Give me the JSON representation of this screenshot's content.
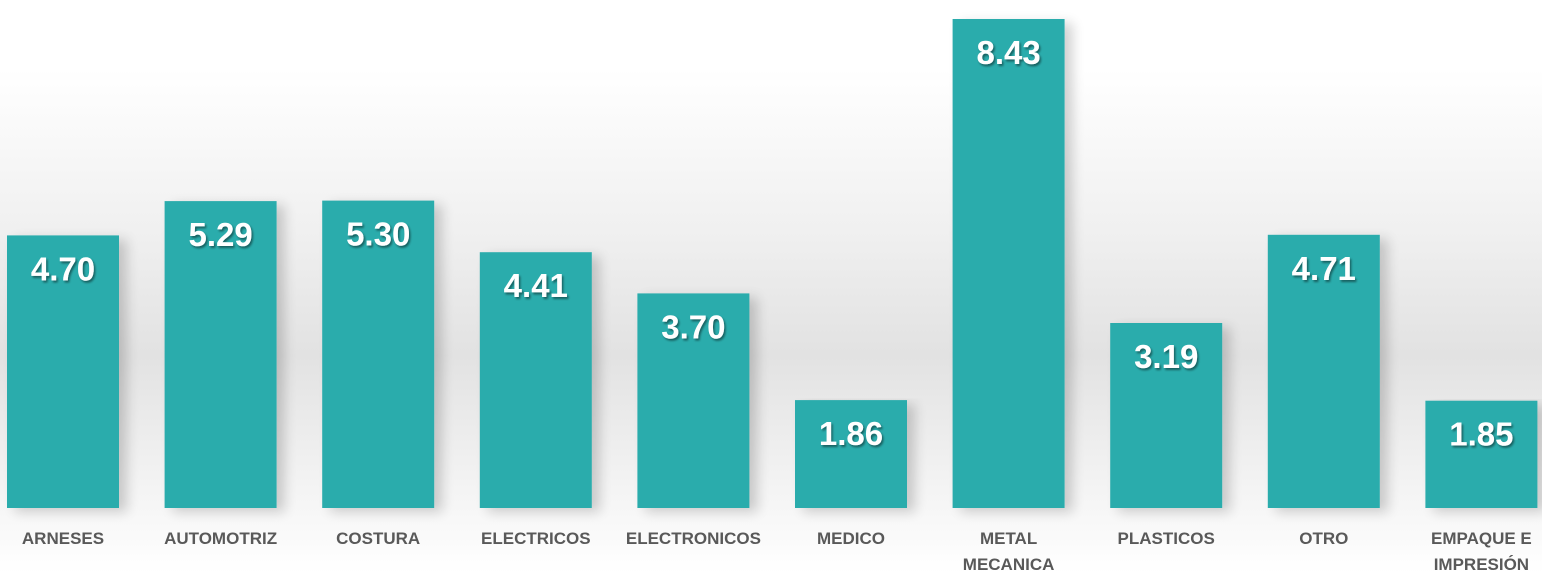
{
  "chart_data": {
    "type": "bar",
    "categories": [
      [
        "ARNESES"
      ],
      [
        "AUTOMOTRIZ"
      ],
      [
        "COSTURA"
      ],
      [
        "ELECTRICOS"
      ],
      [
        "ELECTRONICOS"
      ],
      [
        "MEDICO"
      ],
      [
        "METAL",
        "MECANICA"
      ],
      [
        "PLASTICOS"
      ],
      [
        "OTRO"
      ],
      [
        "EMPAQUE E",
        "IMPRESIÓN"
      ]
    ],
    "values": [
      4.7,
      5.29,
      5.3,
      4.41,
      3.7,
      1.86,
      8.43,
      3.19,
      4.71,
      1.85
    ],
    "value_labels": [
      "4.70",
      "5.29",
      "5.30",
      "4.41",
      "3.70",
      "1.86",
      "8.43",
      "3.19",
      "4.71",
      "1.85"
    ],
    "title": "",
    "xlabel": "",
    "ylabel": "",
    "ylim": [
      0,
      8.43
    ],
    "grid": false,
    "legend": "none",
    "colors": {
      "bar": "#2bacac",
      "value_label": "#ffffff",
      "category_label": "#595959"
    }
  }
}
